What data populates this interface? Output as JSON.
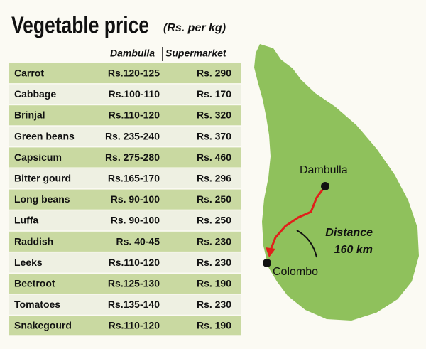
{
  "header": {
    "title": "Vegetable price",
    "unit": "(Rs. per kg)"
  },
  "table": {
    "columns": [
      "Dambulla",
      "Supermarket"
    ],
    "rows": [
      [
        "Carrot",
        "Rs.120-125",
        "Rs. 290"
      ],
      [
        "Cabbage",
        "Rs.100-110",
        "Rs. 170"
      ],
      [
        "Brinjal",
        "Rs.110-120",
        "Rs. 320"
      ],
      [
        "Green beans",
        "Rs. 235-240",
        "Rs. 370"
      ],
      [
        "Capsicum",
        "Rs. 275-280",
        "Rs. 460"
      ],
      [
        "Bitter gourd",
        "Rs.165-170",
        "Rs. 296"
      ],
      [
        "Long beans",
        "Rs. 90-100",
        "Rs. 250"
      ],
      [
        "Luffa",
        "Rs. 90-100",
        "Rs. 250"
      ],
      [
        "Raddish",
        "Rs. 40-45",
        "Rs. 230"
      ],
      [
        "Leeks",
        "Rs.110-120",
        "Rs. 230"
      ],
      [
        "Beetroot",
        "Rs.125-130",
        "Rs. 190"
      ],
      [
        "Tomatoes",
        "Rs.135-140",
        "Rs. 230"
      ],
      [
        "Snakegourd",
        "Rs.110-120",
        "Rs. 190"
      ]
    ]
  },
  "map": {
    "origin": "Dambulla",
    "destination": "Colombo",
    "distance_label": "Distance",
    "distance": "160 km"
  }
}
